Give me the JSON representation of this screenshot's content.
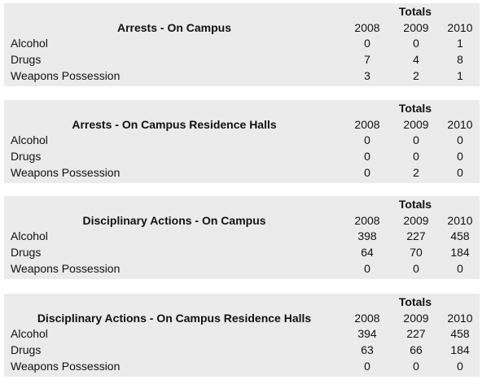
{
  "totals_label": "Totals",
  "years": [
    "2008",
    "2009",
    "2010"
  ],
  "row_labels": [
    "Alcohol",
    "Drugs",
    "Weapons Possession"
  ],
  "sections": [
    {
      "title": "Arrests - On Campus",
      "rows": [
        {
          "label": "Alcohol",
          "values": [
            "0",
            "0",
            "1"
          ]
        },
        {
          "label": "Drugs",
          "values": [
            "7",
            "4",
            "8"
          ]
        },
        {
          "label": "Weapons Possession",
          "values": [
            "3",
            "2",
            "1"
          ]
        }
      ]
    },
    {
      "title": "Arrests - On Campus Residence Halls",
      "rows": [
        {
          "label": "Alcohol",
          "values": [
            "0",
            "0",
            "0"
          ]
        },
        {
          "label": "Drugs",
          "values": [
            "0",
            "0",
            "0"
          ]
        },
        {
          "label": "Weapons Possession",
          "values": [
            "0",
            "2",
            "0"
          ]
        }
      ]
    },
    {
      "title": "Disciplinary Actions - On Campus",
      "rows": [
        {
          "label": "Alcohol",
          "values": [
            "398",
            "227",
            "458"
          ]
        },
        {
          "label": "Drugs",
          "values": [
            "64",
            "70",
            "184"
          ]
        },
        {
          "label": "Weapons Possession",
          "values": [
            "0",
            "0",
            "0"
          ]
        }
      ]
    },
    {
      "title": "Disciplinary Actions - On Campus Residence Halls",
      "rows": [
        {
          "label": "Alcohol",
          "values": [
            "394",
            "227",
            "458"
          ]
        },
        {
          "label": "Drugs",
          "values": [
            "63",
            "66",
            "184"
          ]
        },
        {
          "label": "Weapons Possession",
          "values": [
            "0",
            "0",
            "0"
          ]
        }
      ]
    }
  ]
}
